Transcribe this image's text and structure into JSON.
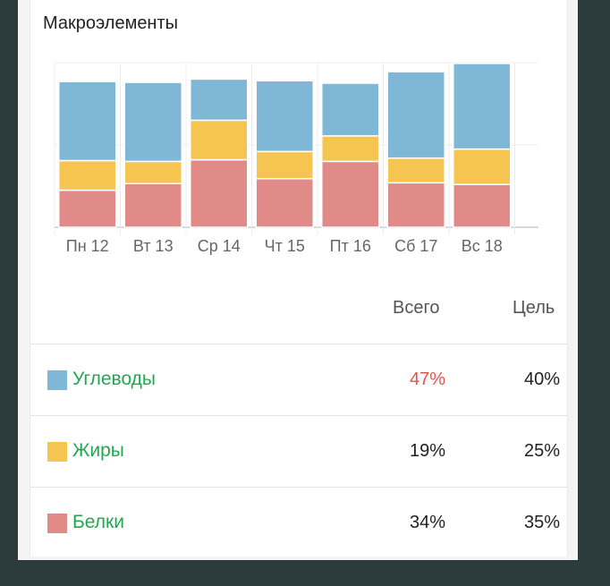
{
  "title": "Макроэлементы",
  "chart_data": {
    "type": "bar",
    "stacked": true,
    "categories": [
      "Пн 12",
      "Вт 13",
      "Ср 14",
      "Чт 15",
      "Пт 16",
      "Сб 17",
      "Вс 18"
    ],
    "series": [
      {
        "name": "Белки",
        "color": "#e08b88",
        "values": [
          45,
          53,
          82,
          59,
          80,
          54,
          52
        ]
      },
      {
        "name": "Жиры",
        "color": "#f5c451",
        "values": [
          36,
          27,
          48,
          33,
          31,
          30,
          43
        ]
      },
      {
        "name": "Углеводы",
        "color": "#7fb7d6",
        "values": [
          96,
          96,
          50,
          86,
          64,
          105,
          104
        ]
      }
    ],
    "ylim": [
      0,
      200
    ],
    "grid": true
  },
  "table": {
    "col_total": "Всего",
    "col_goal": "Цель",
    "rows": [
      {
        "name": "Углеводы",
        "color": "#7fb7d6",
        "total": "47%",
        "total_color": "#e0534f",
        "goal": "40%"
      },
      {
        "name": "Жиры",
        "color": "#f5c451",
        "total": "19%",
        "total_color": "#222222",
        "goal": "25%"
      },
      {
        "name": "Белки",
        "color": "#e08b88",
        "total": "34%",
        "total_color": "#222222",
        "goal": "35%"
      }
    ]
  }
}
